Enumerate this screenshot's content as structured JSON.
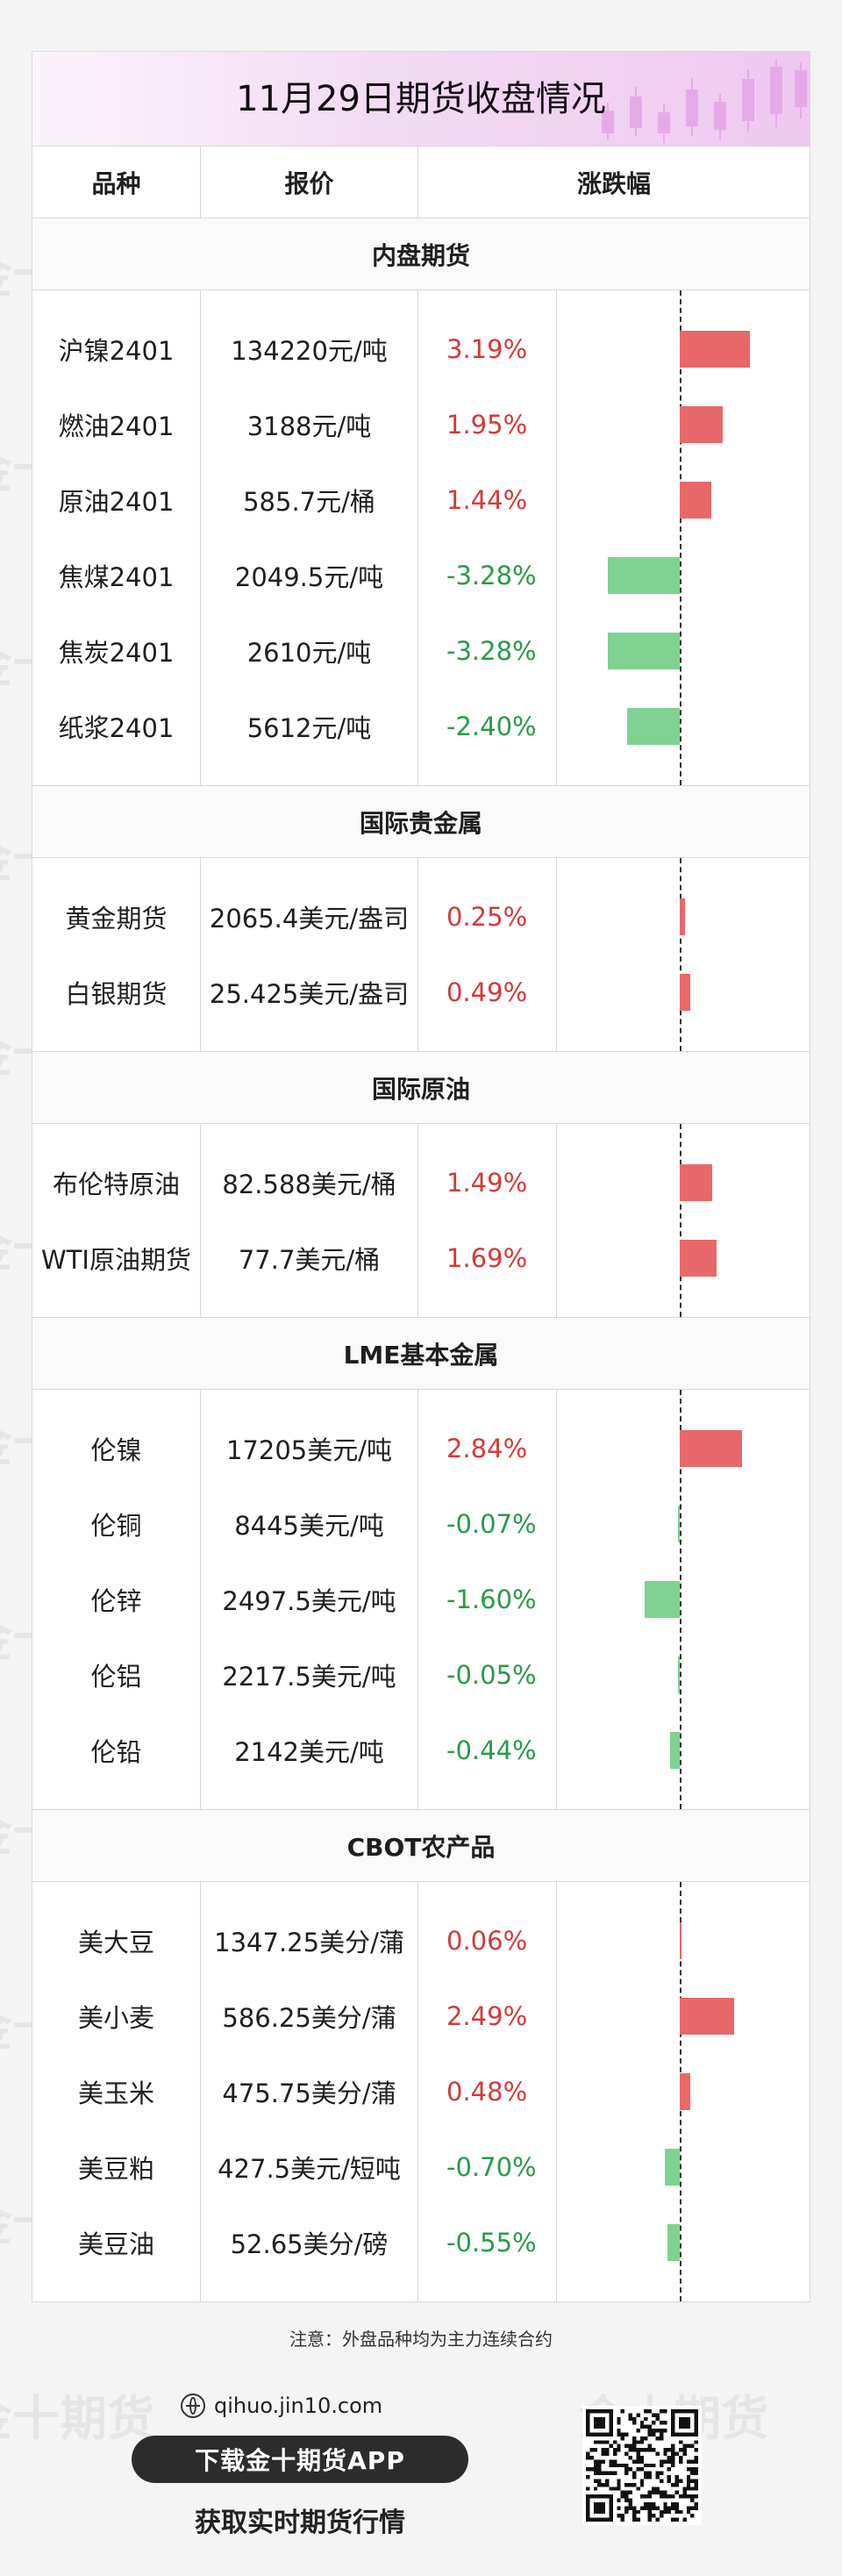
{
  "title": "11月29日期货收盘情况",
  "columns": [
    "品种",
    "报价",
    "涨跌幅"
  ],
  "watermark_text": "金十期货",
  "colors": {
    "up": "#d33a3a",
    "down": "#2a9a4a",
    "bar_up": "#e8686a",
    "bar_down": "#7fd291"
  },
  "bar_scale_max_pct": 3.28,
  "sections": [
    {
      "name": "内盘期货",
      "rows": [
        {
          "name": "沪镍2401",
          "price": "134220元/吨",
          "change": "3.19%",
          "value": 3.19
        },
        {
          "name": "燃油2401",
          "price": "3188元/吨",
          "change": "1.95%",
          "value": 1.95
        },
        {
          "name": "原油2401",
          "price": "585.7元/桶",
          "change": "1.44%",
          "value": 1.44
        },
        {
          "name": "焦煤2401",
          "price": "2049.5元/吨",
          "change": "-3.28%",
          "value": -3.28
        },
        {
          "name": "焦炭2401",
          "price": "2610元/吨",
          "change": "-3.28%",
          "value": -3.28
        },
        {
          "name": "纸浆2401",
          "price": "5612元/吨",
          "change": "-2.40%",
          "value": -2.4
        }
      ]
    },
    {
      "name": "国际贵金属",
      "rows": [
        {
          "name": "黄金期货",
          "price": "2065.4美元/盎司",
          "change": "0.25%",
          "value": 0.25
        },
        {
          "name": "白银期货",
          "price": "25.425美元/盎司",
          "change": "0.49%",
          "value": 0.49
        }
      ]
    },
    {
      "name": "国际原油",
      "rows": [
        {
          "name": "布伦特原油",
          "price": "82.588美元/桶",
          "change": "1.49%",
          "value": 1.49
        },
        {
          "name": "WTI原油期货",
          "price": "77.7美元/桶",
          "change": "1.69%",
          "value": 1.69
        }
      ]
    },
    {
      "name": "LME基本金属",
      "rows": [
        {
          "name": "伦镍",
          "price": "17205美元/吨",
          "change": "2.84%",
          "value": 2.84
        },
        {
          "name": "伦铜",
          "price": "8445美元/吨",
          "change": "-0.07%",
          "value": -0.07
        },
        {
          "name": "伦锌",
          "price": "2497.5美元/吨",
          "change": "-1.60%",
          "value": -1.6
        },
        {
          "name": "伦铝",
          "price": "2217.5美元/吨",
          "change": "-0.05%",
          "value": -0.05
        },
        {
          "name": "伦铅",
          "price": "2142美元/吨",
          "change": "-0.44%",
          "value": -0.44
        }
      ]
    },
    {
      "name": "CBOT农产品",
      "rows": [
        {
          "name": "美大豆",
          "price": "1347.25美分/蒲",
          "change": "0.06%",
          "value": 0.06
        },
        {
          "name": "美小麦",
          "price": "586.25美分/蒲",
          "change": "2.49%",
          "value": 2.49
        },
        {
          "name": "美玉米",
          "price": "475.75美分/蒲",
          "change": "0.48%",
          "value": 0.48
        },
        {
          "name": "美豆粕",
          "price": "427.5美元/短吨",
          "change": "-0.70%",
          "value": -0.7
        },
        {
          "name": "美豆油",
          "price": "52.65美分/磅",
          "change": "-0.55%",
          "value": -0.55
        }
      ]
    }
  ],
  "footer": {
    "note": "注意：外盘品种均为主力连续合约",
    "url": "qihuo.jin10.com",
    "download_label": "下载金十期货APP",
    "subtitle": "获取实时期货行情",
    "qr_icon": "qr-code-icon"
  }
}
